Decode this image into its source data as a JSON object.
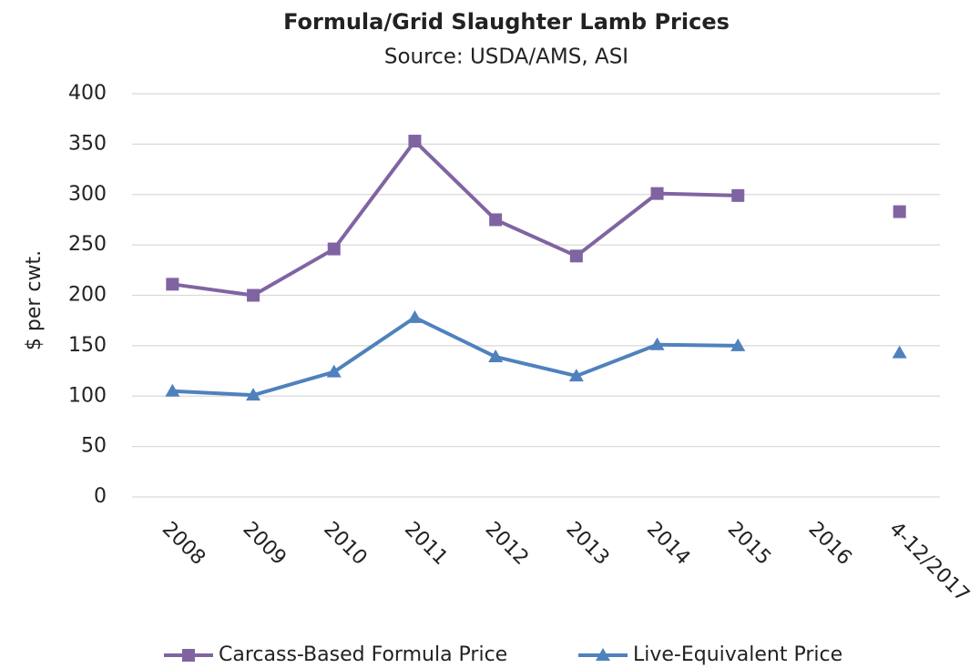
{
  "chart_data": {
    "type": "line",
    "title": "Formula/Grid Slaughter Lamb Prices",
    "subtitle": "Source: USDA/AMS, ASI",
    "y_label": "$ per cwt.",
    "categories": [
      "2008",
      "2009",
      "2010",
      "2011",
      "2012",
      "2013",
      "2014",
      "2015",
      "2016",
      "4-12/2017"
    ],
    "series": [
      {
        "name": "Carcass-Based Formula Price",
        "color": "#8064a2",
        "marker": "square",
        "values": [
          211,
          200,
          246,
          353,
          275,
          239,
          301,
          299,
          null,
          283
        ]
      },
      {
        "name": "Live-Equivalent Price",
        "color": "#4f81bd",
        "marker": "triangle",
        "values": [
          105,
          101,
          124,
          178,
          139,
          120,
          151,
          150,
          null,
          143
        ]
      }
    ],
    "ylim": [
      0,
      400
    ],
    "yticks": [
      0,
      50,
      100,
      150,
      200,
      250,
      300,
      350,
      400
    ],
    "grid": true,
    "legend": "bottom"
  }
}
